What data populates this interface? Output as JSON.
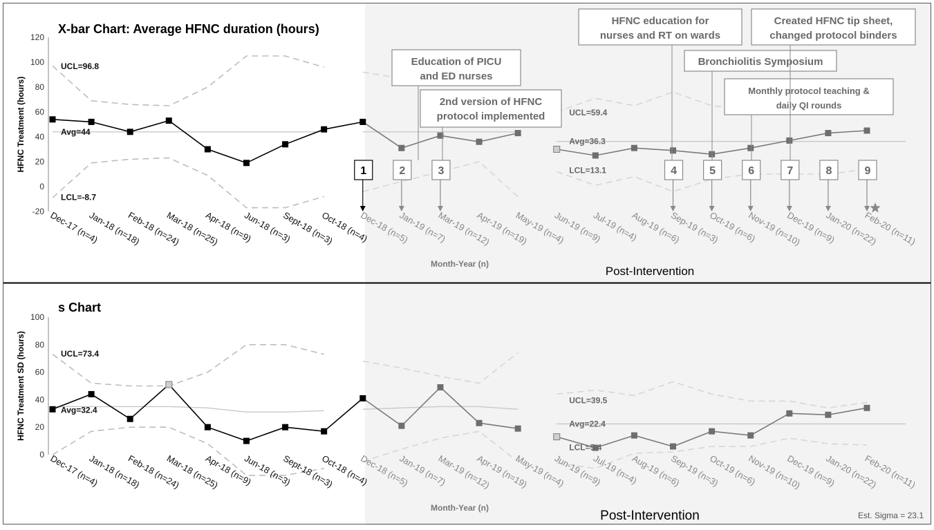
{
  "footer_note": "Est. Sigma = 23.1",
  "colors": {
    "pre_line": "#000000",
    "post_line": "#7a7a7a",
    "marker_pre": "#000000",
    "marker_post": "#6e6e6e",
    "marker_post_light": "#cfcfcf",
    "limit_pre": "#bdbdbd",
    "limit_post": "#d6d6d6",
    "avg_line": "#c8c8c8",
    "post_bg": "#f3f3f3",
    "callout_border": "#8a8a8a",
    "callout_text": "#6a6a6a",
    "star": "#888888"
  },
  "categories": [
    "Dec-17 (n=4)",
    "Jan-18 (n=18)",
    "Feb-18 (n=24)",
    "Mar-18 (n=25)",
    "Apr-18 (n=9)",
    "Jun-18 (n=3)",
    "Sept-18 (n=3)",
    "Oct-18 (n=4)",
    "Dec-18 (n=5)",
    "Jan-19 (n=7)",
    "Mar-19 (n=12)",
    "Apr-19 (n=19)",
    "May-19 (n=4)",
    "Jun-19 (n=9)",
    "Jul-19 (n=4)",
    "Aug-19 (n=6)",
    "Sep-19 (n=3)",
    "Oct-19 (n=6)",
    "Nov-19 (n=10)",
    "Dec-19 (n=9)",
    "Jan-20 (n=22)",
    "Feb-20 (n=11)"
  ],
  "chart_data": [
    {
      "type": "line",
      "title": "X-bar Chart: Average HFNC duration (hours)",
      "ylabel": "HFNC Treatment (hours)",
      "xlabel": "Month-Year (n)",
      "post_label": "Post-Intervention",
      "ylim": [
        -20,
        120
      ],
      "yticks": [
        "-20",
        "0",
        "20",
        "40",
        "60",
        "80",
        "100",
        "120"
      ],
      "grid": false,
      "series": [
        {
          "values": [
            54,
            52,
            44,
            53,
            30,
            19,
            34,
            46,
            52,
            31,
            41,
            36,
            43,
            30,
            25,
            31,
            29,
            26,
            31,
            37,
            43,
            45
          ]
        }
      ],
      "limits": {
        "pre": {
          "ucl": [
            97,
            69,
            66,
            65,
            80,
            105,
            105,
            96
          ],
          "avg": [
            44,
            44,
            44,
            44,
            44,
            44,
            44,
            44
          ],
          "lcl": [
            -9,
            19,
            22,
            23,
            9,
            -17,
            -17,
            -8
          ]
        },
        "post_a": {
          "ucl": [
            92,
            87,
            85,
            88,
            95
          ],
          "avg": [
            44,
            44,
            44,
            44,
            44
          ],
          "lcl": [
            -4,
            4,
            12,
            20,
            -8
          ]
        },
        "post_b": {
          "ucl": [
            60,
            71,
            65,
            76,
            65,
            62,
            63,
            63,
            58
          ],
          "avg": [
            36.3,
            36.3,
            36.3,
            36.3,
            36.3,
            36.3,
            36.3,
            36.3,
            36.3,
            36.3
          ],
          "lcl": [
            12,
            1,
            8,
            -4,
            6,
            10,
            10,
            10,
            14
          ]
        }
      },
      "limit_labels": [
        {
          "text": "UCL=96.8",
          "x": 0,
          "y": 96.8,
          "tone": "dark"
        },
        {
          "text": "Avg=44",
          "x": 0,
          "y": 44,
          "tone": "dark"
        },
        {
          "text": "LCL=-8.7",
          "x": 0,
          "y": -8.7,
          "tone": "dark"
        },
        {
          "text": "UCL=59.4",
          "x": 13,
          "y": 59.4,
          "tone": "mid"
        },
        {
          "text": "Avg=36.3",
          "x": 13,
          "y": 36.3,
          "tone": "mid"
        },
        {
          "text": "LCL=13.1",
          "x": 13,
          "y": 13.1,
          "tone": "mid"
        }
      ],
      "interventions": [
        {
          "num": "1",
          "x": 8,
          "style": "dark"
        },
        {
          "num": "2",
          "x": 9,
          "style": "light"
        },
        {
          "num": "3",
          "x": 10,
          "style": "light"
        },
        {
          "num": "4",
          "x": 16,
          "style": "light"
        },
        {
          "num": "5",
          "x": 17,
          "style": "light"
        },
        {
          "num": "6",
          "x": 18,
          "style": "light"
        },
        {
          "num": "7",
          "x": 19,
          "style": "light"
        },
        {
          "num": "8",
          "x": 20,
          "style": "light"
        },
        {
          "num": "9",
          "x": 21,
          "style": "light"
        }
      ],
      "callouts": [
        {
          "lines": [
            "Education of PICU",
            "and ED nurses"
          ],
          "x": 9
        },
        {
          "lines": [
            "2nd version of HFNC",
            "protocol implemented"
          ],
          "x": 10
        },
        {
          "lines": [
            "HFNC education for",
            "nurses and RT on wards"
          ],
          "x": 16
        },
        {
          "lines": [
            "Bronchiolitis Symposium"
          ],
          "x": 17
        },
        {
          "lines": [
            "Monthly protocol teaching &",
            "daily QI rounds"
          ],
          "x": 18
        },
        {
          "lines": [
            "Created HFNC tip sheet,",
            "changed protocol binders"
          ],
          "x": 19
        }
      ]
    },
    {
      "type": "line",
      "title": "s Chart",
      "ylabel": "HFNC Treatment SD (hours)",
      "xlabel": "Month-Year (n)",
      "post_label": "Post-Intervention",
      "ylim": [
        0,
        100
      ],
      "yticks": [
        "0",
        "20",
        "40",
        "60",
        "80",
        "100"
      ],
      "grid": false,
      "series": [
        {
          "values": [
            33,
            44,
            26,
            51,
            20,
            10,
            20,
            17,
            41,
            21,
            49,
            23,
            19,
            13,
            5,
            14,
            6,
            17,
            14,
            30,
            29,
            34
          ]
        }
      ],
      "limits": {
        "pre": {
          "ucl": [
            73,
            52,
            50,
            50,
            60,
            80,
            80,
            73
          ],
          "avg": [
            35,
            35,
            35,
            35,
            34,
            31,
            31,
            32
          ],
          "lcl": [
            0,
            17,
            20,
            20,
            8,
            -15,
            -15,
            -10
          ]
        },
        "post_a": {
          "ucl": [
            68,
            63,
            57,
            52,
            74
          ],
          "avg": [
            33,
            34,
            35,
            35,
            33
          ],
          "lcl": [
            -5,
            4,
            12,
            17,
            -5
          ]
        },
        "post_b": {
          "ucl": [
            44,
            47,
            43,
            53,
            44,
            39,
            39,
            34,
            38
          ],
          "avg": [
            22.4,
            22.4,
            22.4,
            22.4,
            22.4,
            22.4,
            22.4,
            22.4,
            22.4,
            22.4
          ],
          "lcl": [
            -6,
            -10,
            1,
            2,
            6,
            6,
            12,
            8,
            7
          ]
        }
      },
      "limit_labels": [
        {
          "text": "UCL=73.4",
          "x": 0,
          "y": 73.4,
          "tone": "dark"
        },
        {
          "text": "Avg=32.4",
          "x": 0,
          "y": 32.4,
          "tone": "dark"
        },
        {
          "text": "UCL=39.5",
          "x": 13,
          "y": 39.5,
          "tone": "mid"
        },
        {
          "text": "Avg=22.4",
          "x": 13,
          "y": 22.4,
          "tone": "mid"
        },
        {
          "text": "LCL=5.4",
          "x": 13,
          "y": 5.4,
          "tone": "mid"
        }
      ]
    }
  ]
}
